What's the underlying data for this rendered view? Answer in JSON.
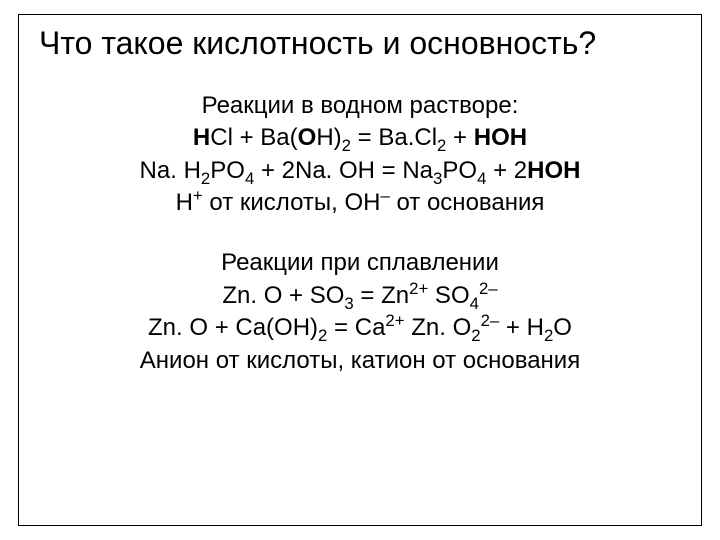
{
  "title": "Что такое кислотность и основность?",
  "block1": {
    "header": "Реакции в водном растворе:",
    "footer_pre": "H",
    "footer_mid1": " от кислоты, OH",
    "footer_mid2": " от основания"
  },
  "block2": {
    "header": "Реакции при сплавлении",
    "footer": "Анион от кислоты, катион от основания"
  },
  "style": {
    "background": "#ffffff",
    "text_color": "#000000",
    "font_family": "Arial",
    "title_fontsize": 32,
    "body_fontsize": 24,
    "dimensions": "720x540"
  },
  "tokens": {
    "H": "H",
    "Cl": "Cl",
    "plus": " + ",
    "Ba": "Ba(",
    "O": "O",
    "Hclose": "H)",
    "eq": " = ",
    "BaCl": "Ba.Cl",
    "OH": "OH",
    "Na": "Na. H",
    "P": "P",
    "O2": "O",
    "twoNaOH": " + 2Na. OH = Na",
    "plus2": " + 2",
    "ZnO": "Zn. O + SO",
    "eqZn": " = Zn",
    "SO": " SO",
    "ZnOCa": "Zn. O + Ca(OH)",
    "eqCa": " = Ca",
    "ZnO2": " Zn. O",
    "H2O": " + H",
    "two": "2",
    "three": "3",
    "four": "4",
    "twoplus": "2+",
    "twominus": "2–",
    "supplus": "+",
    "supminus": "–"
  }
}
